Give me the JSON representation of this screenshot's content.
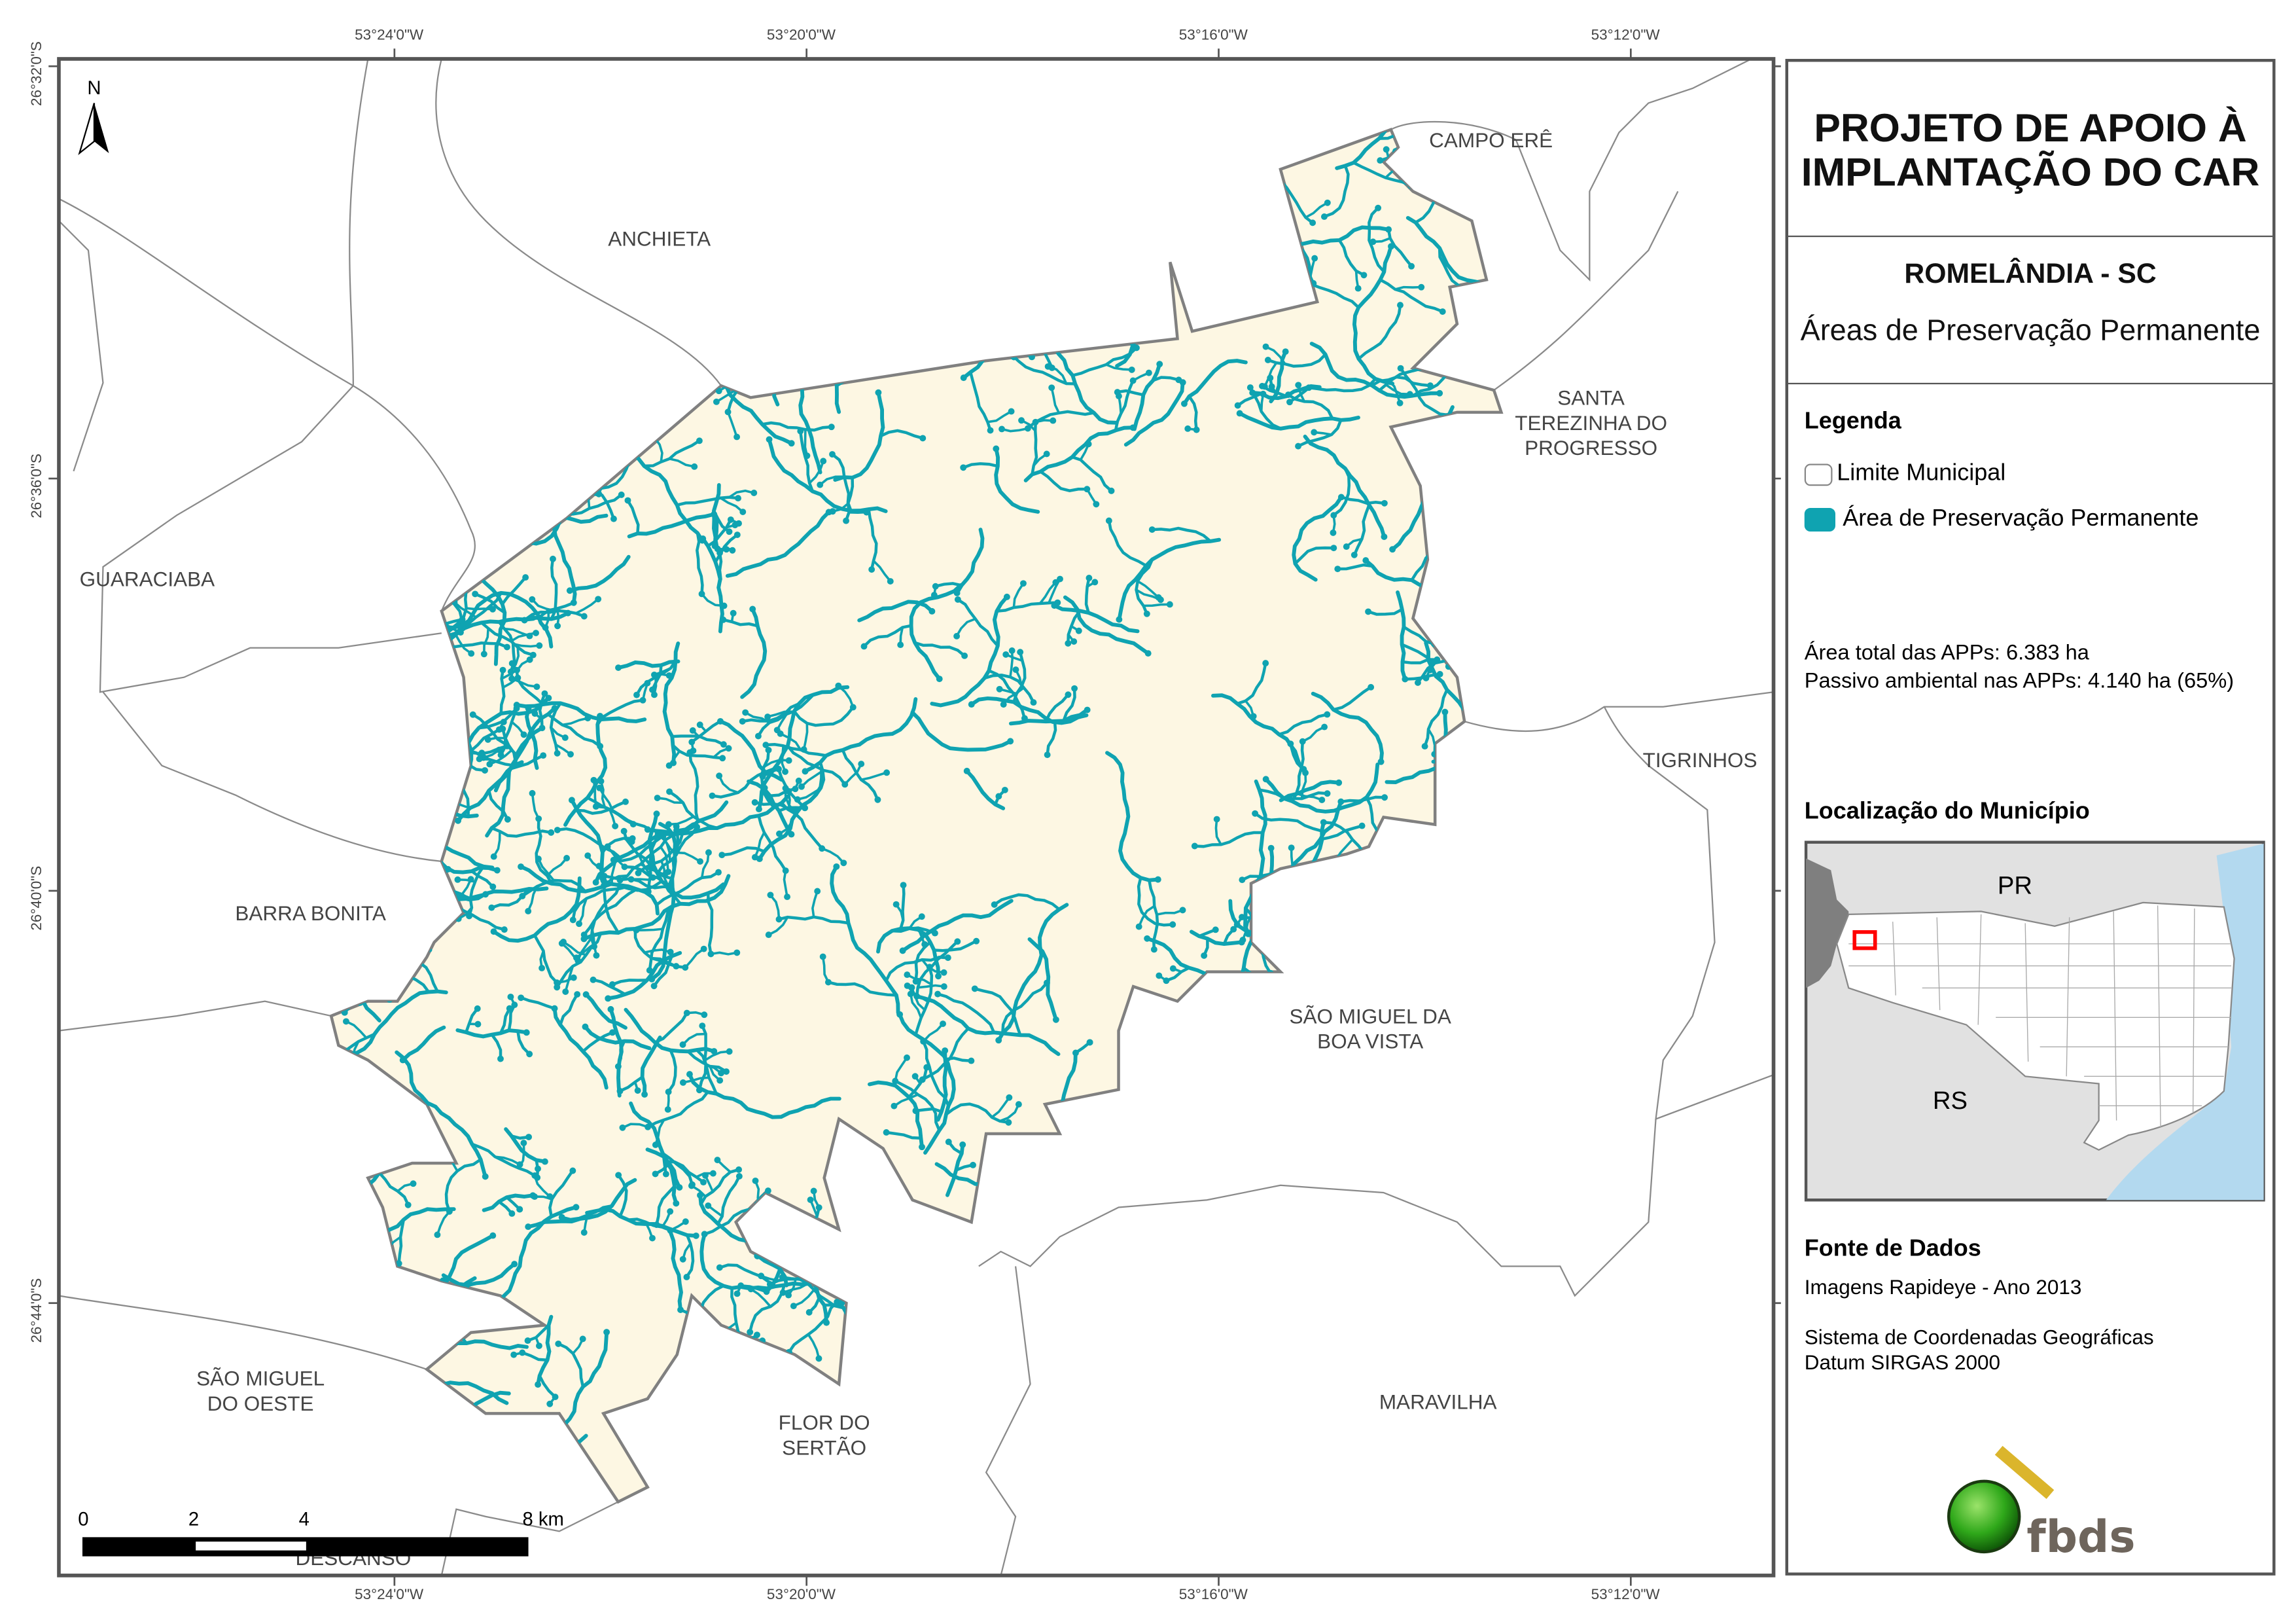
{
  "map": {
    "top_coords": [
      "53°24'0\"W",
      "53°20'0\"W",
      "53°16'0\"W",
      "53°12'0\"W"
    ],
    "bottom_coords": [
      "53°24'0\"W",
      "53°20'0\"W",
      "53°16'0\"W",
      "53°12'0\"W"
    ],
    "left_coords": [
      "26°32'0\"S",
      "26°36'0\"S",
      "26°40'0\"S",
      "26°44'0\"S"
    ],
    "north_label": "N",
    "municipalities": {
      "campo_ere": "CAMPO ERÊ",
      "anchieta": "ANCHIETA",
      "santa_terezinha": [
        "SANTA",
        "TEREZINHA DO",
        "PROGRESSO"
      ],
      "guaraciaba": "GUARACIABA",
      "tigrinhos": "TIGRINHOS",
      "barra_bonita": "BARRA BONITA",
      "sao_miguel_boa_vista": [
        "SÃO MIGUEL DA",
        "BOA VISTA"
      ],
      "sao_miguel_oeste": [
        "SÃO MIGUEL",
        "DO OESTE"
      ],
      "flor_do_sertao": [
        "FLOR DO",
        "SERTÃO"
      ],
      "maravilha": "MARAVILHA",
      "descanso": "DESCANSO"
    },
    "scale_labels": [
      "0",
      "2",
      "4",
      "8 km"
    ],
    "colors": {
      "app": "#0fa3b1",
      "municipio": "#fdf7e3",
      "boundary": "#808080"
    }
  },
  "panel": {
    "title": [
      "PROJETO DE APOIO À",
      "IMPLANTAÇÃO DO CAR"
    ],
    "municipio": "ROMELÂNDIA - SC",
    "subtitle": "Áreas de Preservação Permanente",
    "legend_title": "Legenda",
    "legend_items": [
      {
        "label": "Limite Municipal",
        "symbol": "outline"
      },
      {
        "label": "Área de Preservação Permanente",
        "symbol": "fill",
        "color": "#0fa3b1"
      }
    ],
    "stats": [
      "Área total das APPs: 6.383 ha",
      "Passivo ambiental nas APPs: 4.140 ha (65%)"
    ],
    "location_title": "Localização do Município",
    "inset": {
      "north_label": "PR",
      "south_label": "RS",
      "highlight_color": "#ff0000",
      "ocean_color": "#b3d9ef"
    },
    "source_title": "Fonte de Dados",
    "source_lines": [
      "Imagens Rapideye - Ano 2013",
      "Sistema de Coordenadas Geográficas",
      "Datum SIRGAS 2000"
    ],
    "logo_text": "fbds"
  }
}
